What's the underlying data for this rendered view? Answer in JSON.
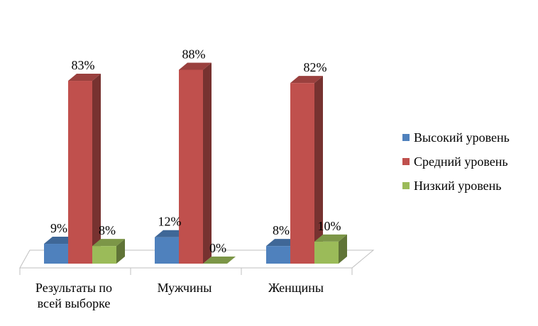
{
  "chart_data": {
    "type": "bar",
    "categories": [
      [
        "Результаты по",
        "всей выборке"
      ],
      [
        "Мужчины"
      ],
      [
        "Женщины"
      ]
    ],
    "series": [
      {
        "name": "Высокий уровень",
        "values": [
          9,
          12,
          8
        ],
        "color": "#4f81bd"
      },
      {
        "name": "Средний уровень",
        "values": [
          83,
          88,
          82
        ],
        "color": "#c0504d"
      },
      {
        "name": "Низкий уровень",
        "values": [
          8,
          0,
          10
        ],
        "color": "#9bbb59"
      }
    ],
    "data_labels": [
      [
        "9%",
        "12%",
        "8%"
      ],
      [
        "83%",
        "88%",
        "82%"
      ],
      [
        "8%",
        "0%",
        "10%"
      ]
    ],
    "unit": "%",
    "ylim": [
      0,
      100
    ],
    "grid": false,
    "legend_position": "right",
    "three_d": true
  }
}
